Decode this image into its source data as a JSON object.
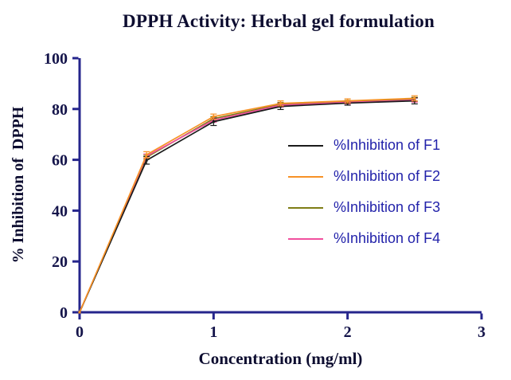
{
  "title": "DPPH Activity: Herbal gel formulation",
  "chart_data": {
    "type": "line",
    "title": "DPPH Activity: Herbal gel formulation",
    "xlabel": "Concentration (mg/ml)",
    "ylabel": "% Inhibition of  DPPH",
    "xlim": [
      0,
      3
    ],
    "ylim": [
      0,
      100
    ],
    "x_ticks": [
      0,
      1,
      2,
      3
    ],
    "y_ticks": [
      0,
      20,
      40,
      60,
      80,
      100
    ],
    "grid": false,
    "legend_position": "inside-right",
    "x": [
      0,
      0.5,
      1,
      1.5,
      2,
      2.5
    ],
    "series": [
      {
        "name": "%Inhibition of F1",
        "color": "#1a1a1a",
        "values": [
          0,
          59.8,
          75.0,
          81.0,
          82.3,
          83.2
        ],
        "errors": [
          0,
          1.5,
          1.5,
          1.2,
          0.8,
          1.2
        ]
      },
      {
        "name": "%Inhibition of F2",
        "color": "#f79226",
        "values": [
          0,
          62.0,
          77.0,
          82.2,
          83.2,
          84.2
        ],
        "errors": [
          0,
          1.2,
          1.0,
          1.0,
          0.8,
          1.0
        ]
      },
      {
        "name": "%Inhibition of F3",
        "color": "#7e7d15",
        "values": [
          0,
          61.0,
          76.2,
          81.8,
          82.8,
          83.8
        ],
        "errors": [
          0,
          0.8,
          0.8,
          0.8,
          0.6,
          0.8
        ]
      },
      {
        "name": "%Inhibition of F4",
        "color": "#f1509e",
        "values": [
          0,
          61.5,
          75.6,
          81.5,
          82.6,
          83.5
        ],
        "errors": [
          0,
          0.8,
          0.8,
          0.8,
          0.6,
          0.8
        ]
      }
    ]
  },
  "colors": {
    "axis": "#26268c",
    "tick_label": "#14144a",
    "title_text": "#0d0d30",
    "axis_label_text": "#0d0d30",
    "legend_text": "#2222aa",
    "background": "#ffffff"
  }
}
